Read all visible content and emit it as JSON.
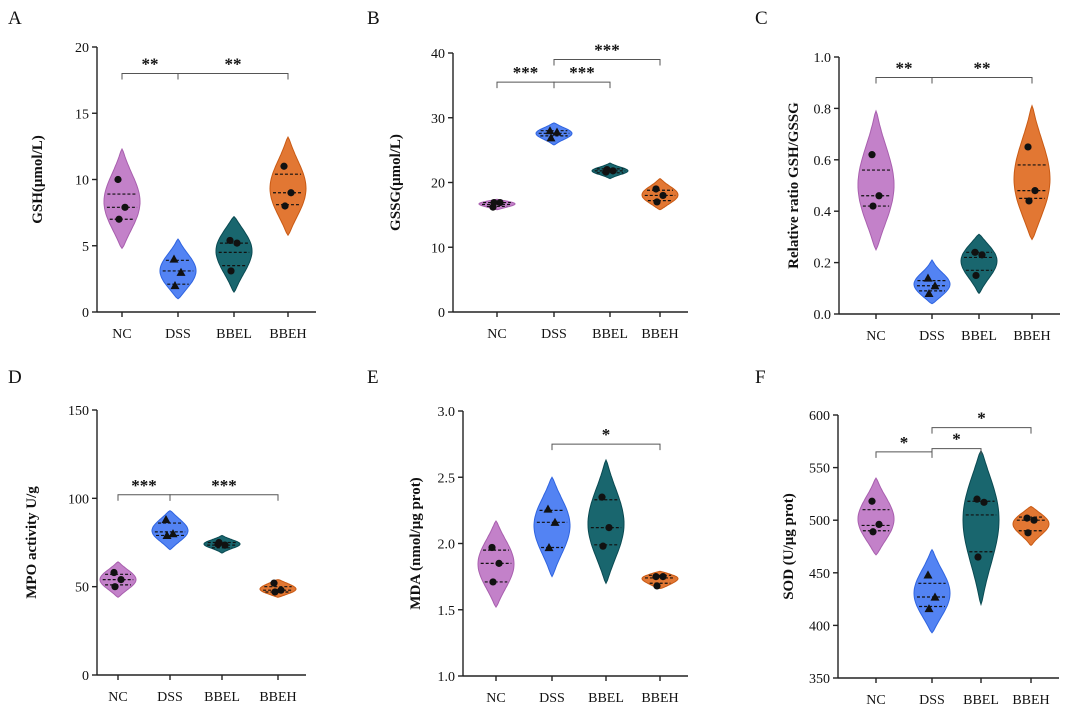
{
  "colors": {
    "NC": "#c07ac6",
    "DSS": "#4a7cf2",
    "BBEL": "#0d5e66",
    "BBEH": "#e07028",
    "NC_stroke": "#a85fae",
    "DSS_stroke": "#2f64e0",
    "BBEL_stroke": "#0a4a52",
    "BBEH_stroke": "#c95a14"
  },
  "chart_data": [
    {
      "panel": "A",
      "type": "violin",
      "ylabel": "GSH(μmol/L)",
      "ylim": [
        0,
        20
      ],
      "yticks": [
        0,
        5,
        10,
        15,
        20
      ],
      "categories": [
        "NC",
        "DSS",
        "BBEL",
        "BBEH"
      ],
      "points": [
        [
          10.0,
          7.9,
          7.0
        ],
        [
          4.0,
          3.0,
          2.0
        ],
        [
          5.4,
          5.2,
          3.1
        ],
        [
          11.0,
          9.0,
          8.0
        ]
      ],
      "quartiles": [
        [
          7.0,
          7.9,
          8.9
        ],
        [
          2.1,
          3.1,
          3.9
        ],
        [
          3.5,
          4.5,
          5.2
        ],
        [
          8.1,
          9.0,
          10.4
        ]
      ],
      "violin_range": [
        [
          4.8,
          12.3
        ],
        [
          1.0,
          5.5
        ],
        [
          1.5,
          7.2
        ],
        [
          5.8,
          13.2
        ]
      ],
      "markers": [
        "circle",
        "triangle",
        "circle",
        "circle"
      ],
      "significance": [
        {
          "from": 0,
          "to": 1,
          "label": "**",
          "y": 18.0
        },
        {
          "from": 1,
          "to": 3,
          "label": "**",
          "y": 18.0
        }
      ]
    },
    {
      "panel": "B",
      "type": "violin",
      "ylabel": "GSSG(μmol/L)",
      "ylim": [
        0,
        40
      ],
      "yticks": [
        0,
        10,
        20,
        30,
        40
      ],
      "categories": [
        "NC",
        "DSS",
        "BBEL",
        "BBEH"
      ],
      "points": [
        [
          16.2,
          16.9,
          16.9
        ],
        [
          28.0,
          27.8,
          26.9
        ],
        [
          21.6,
          21.8,
          22.0
        ],
        [
          19.0,
          18.0,
          17.0
        ]
      ],
      "quartiles": [
        [
          16.3,
          16.6,
          16.9
        ],
        [
          27.2,
          27.6,
          28.0
        ],
        [
          21.5,
          21.8,
          22.1
        ],
        [
          17.2,
          18.0,
          18.8
        ]
      ],
      "violin_range": [
        [
          15.8,
          17.4
        ],
        [
          25.8,
          29.2
        ],
        [
          20.6,
          23.0
        ],
        [
          15.8,
          20.6
        ]
      ],
      "markers": [
        "circle",
        "triangle",
        "circle",
        "circle"
      ],
      "significance": [
        {
          "from": 0,
          "to": 1,
          "label": "***",
          "y": 35.5
        },
        {
          "from": 1,
          "to": 2,
          "label": "***",
          "y": 35.5
        },
        {
          "from": 1,
          "to": 3,
          "label": "***",
          "y": 39.0
        }
      ]
    },
    {
      "panel": "C",
      "type": "violin",
      "ylabel": "Relative ratio GSH/GSSG",
      "ylim": [
        0.0,
        1.0
      ],
      "yticks": [
        0.0,
        0.2,
        0.4,
        0.6,
        0.8,
        1.0
      ],
      "tick_format": 1,
      "categories": [
        "NC",
        "DSS",
        "BBEL",
        "BBEH"
      ],
      "points": [
        [
          0.62,
          0.46,
          0.42
        ],
        [
          0.14,
          0.11,
          0.08
        ],
        [
          0.24,
          0.23,
          0.15
        ],
        [
          0.65,
          0.48,
          0.44
        ]
      ],
      "quartiles": [
        [
          0.42,
          0.46,
          0.56
        ],
        [
          0.09,
          0.11,
          0.13
        ],
        [
          0.17,
          0.22,
          0.24
        ],
        [
          0.45,
          0.48,
          0.58
        ]
      ],
      "violin_range": [
        [
          0.25,
          0.79
        ],
        [
          0.04,
          0.21
        ],
        [
          0.08,
          0.31
        ],
        [
          0.29,
          0.81
        ]
      ],
      "markers": [
        "circle",
        "triangle",
        "circle",
        "circle"
      ],
      "significance": [
        {
          "from": 0,
          "to": 1,
          "label": "**",
          "y": 0.92
        },
        {
          "from": 1,
          "to": 3,
          "label": "**",
          "y": 0.92
        }
      ]
    },
    {
      "panel": "D",
      "type": "violin",
      "ylabel": "MPO activity U/g",
      "ylim": [
        0,
        150
      ],
      "yticks": [
        0,
        50,
        100,
        150
      ],
      "categories": [
        "NC",
        "DSS",
        "BBEL",
        "BBEH"
      ],
      "points": [
        [
          58.0,
          54.0,
          50.0
        ],
        [
          88.0,
          80.0,
          79.0
        ],
        [
          74.0,
          73.5,
          75.0
        ],
        [
          52.0,
          48.0,
          47.0
        ]
      ],
      "quartiles": [
        [
          51.0,
          54.0,
          57.0
        ],
        [
          79.0,
          81.0,
          86.0
        ],
        [
          72.0,
          73.5,
          75.0
        ],
        [
          47.0,
          48.0,
          50.0
        ]
      ],
      "violin_range": [
        [
          44.0,
          64.0
        ],
        [
          71.0,
          93.0
        ],
        [
          69.0,
          79.0
        ],
        [
          44.0,
          54.0
        ]
      ],
      "markers": [
        "circle",
        "triangle",
        "circle",
        "circle"
      ],
      "significance": [
        {
          "from": 0,
          "to": 1,
          "label": "***",
          "y": 102
        },
        {
          "from": 1,
          "to": 3,
          "label": "***",
          "y": 102
        }
      ]
    },
    {
      "panel": "E",
      "type": "violin",
      "ylabel": "MDA (nmol/μg prot)",
      "ylim": [
        1.0,
        3.0
      ],
      "yticks": [
        1.0,
        1.5,
        2.0,
        2.5,
        3.0
      ],
      "tick_format": 1,
      "categories": [
        "NC",
        "DSS",
        "BBEL",
        "BBEH"
      ],
      "points": [
        [
          1.97,
          1.85,
          1.71
        ],
        [
          2.26,
          2.16,
          1.97
        ],
        [
          2.35,
          2.12,
          1.98
        ],
        [
          1.75,
          1.75,
          1.68
        ]
      ],
      "quartiles": [
        [
          1.71,
          1.85,
          1.95
        ],
        [
          1.97,
          2.16,
          2.25
        ],
        [
          1.99,
          2.12,
          2.33
        ],
        [
          1.7,
          1.74,
          1.76
        ]
      ],
      "violin_range": [
        [
          1.52,
          2.17
        ],
        [
          1.75,
          2.5
        ],
        [
          1.7,
          2.63
        ],
        [
          1.66,
          1.79
        ]
      ],
      "markers": [
        "circle",
        "triangle",
        "circle",
        "circle"
      ],
      "significance": [
        {
          "from": 1,
          "to": 3,
          "label": "*",
          "y": 2.75
        }
      ]
    },
    {
      "panel": "F",
      "type": "violin",
      "ylabel": "SOD (U/μg prot)",
      "ylim": [
        350,
        600
      ],
      "yticks": [
        350,
        400,
        450,
        500,
        550,
        600
      ],
      "categories": [
        "NC",
        "DSS",
        "BBEL",
        "BBEH"
      ],
      "points": [
        [
          518,
          496,
          489
        ],
        [
          448,
          427,
          416
        ],
        [
          520,
          517,
          465
        ],
        [
          502,
          500,
          488
        ]
      ],
      "quartiles": [
        [
          490,
          495,
          510
        ],
        [
          418,
          427,
          440
        ],
        [
          470,
          505,
          518
        ],
        [
          490,
          500,
          503
        ]
      ],
      "violin_range": [
        [
          467,
          540
        ],
        [
          393,
          472
        ],
        [
          420,
          566
        ],
        [
          476,
          513
        ]
      ],
      "markers": [
        "circle",
        "triangle",
        "circle",
        "circle"
      ],
      "significance": [
        {
          "from": 0,
          "to": 1,
          "label": "*",
          "y": 565
        },
        {
          "from": 1,
          "to": 2,
          "label": "*",
          "y": 568
        },
        {
          "from": 1,
          "to": 3,
          "label": "*",
          "y": 588
        }
      ]
    }
  ]
}
